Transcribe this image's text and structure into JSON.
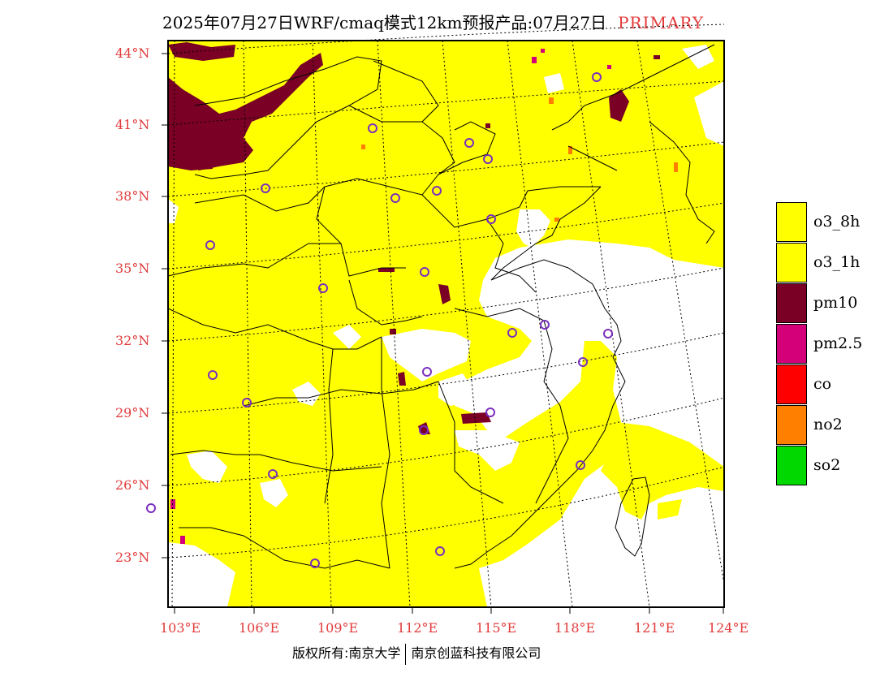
{
  "title": {
    "main": "2025年07月27日WRF/cmaq模式12km预报产品:07月27日",
    "tag": "PRIMARY"
  },
  "axes": {
    "lat_labels": [
      "44°N",
      "41°N",
      "38°N",
      "35°N",
      "32°N",
      "29°N",
      "26°N",
      "23°N"
    ],
    "lon_labels": [
      "103°E",
      "106°E",
      "109°E",
      "112°E",
      "115°E",
      "118°E",
      "121°E",
      "124°E"
    ]
  },
  "legend": [
    {
      "label": "o3_8h",
      "color": "#ffff00"
    },
    {
      "label": "o3_1h",
      "color": "#ffff00"
    },
    {
      "label": "pm10",
      "color": "#7a0026"
    },
    {
      "label": "pm2.5",
      "color": "#d4007a"
    },
    {
      "label": "co",
      "color": "#ff0000"
    },
    {
      "label": "no2",
      "color": "#ff7f00"
    },
    {
      "label": "so2",
      "color": "#00d800"
    }
  ],
  "copyright": {
    "left": "版权所有:南京大学",
    "right": "南京创蓝科技有限公司"
  },
  "colors": {
    "o3": "#ffff00",
    "pm10": "#7a0026",
    "pm25": "#d4007a",
    "no2": "#ff7f00",
    "station_ring": "#7b2fbe",
    "axis_label": "#e23b3b"
  }
}
